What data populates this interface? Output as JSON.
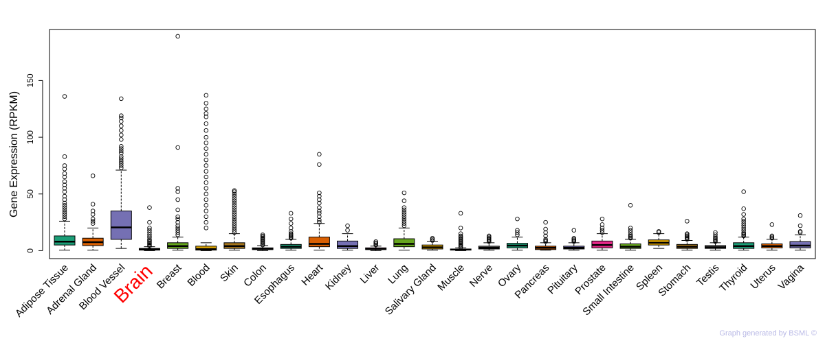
{
  "chart_data": {
    "type": "box",
    "ylabel": "Gene Expression (RPKM)",
    "ylim": [
      -7,
      195
    ],
    "yticks": [
      0,
      50,
      100,
      150
    ],
    "highlight_category": "Brain",
    "highlight_color": "#ff0000",
    "boxes": [
      {
        "label": "Adipose Tissue",
        "color": "#1b9e77",
        "q1": 5,
        "median": 8,
        "q3": 13,
        "whisker_low": 0.5,
        "whisker_high": 26,
        "outliers": [
          28,
          30,
          32,
          34,
          36,
          38,
          40,
          42,
          45,
          48,
          52,
          55,
          58,
          61,
          65,
          68,
          72,
          75,
          83,
          136
        ]
      },
      {
        "label": "Adrenal Gland",
        "color": "#d95f02",
        "q1": 4.5,
        "median": 7.5,
        "q3": 11,
        "whisker_low": 0.5,
        "whisker_high": 20,
        "outliers": [
          24,
          26,
          28,
          32,
          35,
          41,
          66
        ]
      },
      {
        "label": "Blood Vessel",
        "color": "#7570b3",
        "q1": 10,
        "median": 20.5,
        "q3": 35,
        "whisker_low": 2,
        "whisker_high": 71,
        "outliers": [
          73,
          75,
          77,
          79,
          81,
          83,
          86,
          88,
          90,
          92,
          98,
          102,
          106,
          110,
          114,
          117,
          119,
          134
        ]
      },
      {
        "label": "Brain",
        "color": "#e7298a",
        "q1": 0.5,
        "median": 1,
        "q3": 2,
        "whisker_low": 0,
        "whisker_high": 3.5,
        "outliers": [
          4,
          5,
          6,
          7,
          8,
          9,
          10,
          12,
          14,
          16,
          18,
          20,
          25,
          38
        ]
      },
      {
        "label": "Breast",
        "color": "#66a61e",
        "q1": 2,
        "median": 4,
        "q3": 7,
        "whisker_low": 0.5,
        "whisker_high": 12,
        "outliers": [
          14,
          16,
          18,
          20,
          22,
          25,
          28,
          30,
          36,
          45,
          52,
          55,
          91,
          189
        ]
      },
      {
        "label": "Blood",
        "color": "#e6ab02",
        "q1": 0.5,
        "median": 1.5,
        "q3": 4,
        "whisker_low": 0,
        "whisker_high": 7,
        "outliers": [
          20,
          25,
          30,
          35,
          40,
          45,
          50,
          55,
          60,
          65,
          70,
          75,
          80,
          85,
          90,
          95,
          100,
          106,
          112,
          118,
          121,
          125,
          130,
          137
        ]
      },
      {
        "label": "Skin",
        "color": "#a6761d",
        "q1": 2,
        "median": 4,
        "q3": 7,
        "whisker_low": 0.5,
        "whisker_high": 15,
        "outliers": [
          16,
          18,
          20,
          22,
          24,
          26,
          28,
          30,
          32,
          34,
          36,
          38,
          40,
          42,
          44,
          46,
          48,
          50,
          52,
          53
        ]
      },
      {
        "label": "Colon",
        "color": "#666666",
        "q1": 1,
        "median": 1.5,
        "q3": 2.5,
        "whisker_low": 0,
        "whisker_high": 4.5,
        "outliers": [
          5,
          6,
          7,
          8,
          9,
          10,
          11,
          12,
          13,
          14
        ]
      },
      {
        "label": "Esophagus",
        "color": "#1b9e77",
        "q1": 2,
        "median": 3.5,
        "q3": 5.5,
        "whisker_low": 0.5,
        "whisker_high": 10,
        "outliers": [
          11,
          12,
          13,
          14,
          15,
          17,
          20,
          24,
          28,
          33
        ]
      },
      {
        "label": "Heart",
        "color": "#d95f02",
        "q1": 3.5,
        "median": 6,
        "q3": 12,
        "whisker_low": 0.5,
        "whisker_high": 24,
        "outliers": [
          25,
          27,
          30,
          33,
          35,
          38,
          42,
          45,
          48,
          51,
          76,
          85
        ]
      },
      {
        "label": "Kidney",
        "color": "#7570b3",
        "q1": 2,
        "median": 4,
        "q3": 8.5,
        "whisker_low": 0.5,
        "whisker_high": 15,
        "outliers": [
          18,
          22
        ]
      },
      {
        "label": "Liver",
        "color": "#e7298a",
        "q1": 1,
        "median": 1.5,
        "q3": 2.5,
        "whisker_low": 0,
        "whisker_high": 4,
        "outliers": [
          5,
          6,
          7,
          8
        ]
      },
      {
        "label": "Lung",
        "color": "#66a61e",
        "q1": 3.5,
        "median": 6,
        "q3": 10.5,
        "whisker_low": 0.5,
        "whisker_high": 20,
        "outliers": [
          22,
          24,
          26,
          28,
          30,
          32,
          34,
          36,
          38,
          44,
          51
        ]
      },
      {
        "label": "Salivary Gland",
        "color": "#e6ab02",
        "q1": 1.5,
        "median": 3,
        "q3": 5,
        "whisker_low": 0.5,
        "whisker_high": 8,
        "outliers": [
          9,
          10,
          11
        ]
      },
      {
        "label": "Muscle",
        "color": "#a6761d",
        "q1": 0.5,
        "median": 1,
        "q3": 1.5,
        "whisker_low": 0,
        "whisker_high": 2.5,
        "outliers": [
          3,
          4,
          5,
          6,
          7,
          8,
          9,
          10,
          11,
          12,
          13,
          15,
          20,
          33
        ]
      },
      {
        "label": "Nerve",
        "color": "#666666",
        "q1": 1.5,
        "median": 2.5,
        "q3": 4,
        "whisker_low": 0.5,
        "whisker_high": 7,
        "outliers": [
          8,
          9,
          10,
          11,
          12,
          13
        ]
      },
      {
        "label": "Ovary",
        "color": "#1b9e77",
        "q1": 2.5,
        "median": 4.5,
        "q3": 6.5,
        "whisker_low": 0.5,
        "whisker_high": 12,
        "outliers": [
          14,
          16,
          18,
          28
        ]
      },
      {
        "label": "Pancreas",
        "color": "#d95f02",
        "q1": 1,
        "median": 2.5,
        "q3": 4,
        "whisker_low": 0.5,
        "whisker_high": 7,
        "outliers": [
          8,
          9,
          10,
          13,
          16,
          19,
          25
        ]
      },
      {
        "label": "Pituitary",
        "color": "#7570b3",
        "q1": 1.5,
        "median": 2.5,
        "q3": 4,
        "whisker_low": 0.5,
        "whisker_high": 7,
        "outliers": [
          8,
          9,
          10,
          11,
          18
        ]
      },
      {
        "label": "Prostate",
        "color": "#e7298a",
        "q1": 2.5,
        "median": 5,
        "q3": 8.5,
        "whisker_low": 0.5,
        "whisker_high": 15,
        "outliers": [
          16,
          18,
          20,
          23,
          28
        ]
      },
      {
        "label": "Small Intestine",
        "color": "#66a61e",
        "q1": 2,
        "median": 3.5,
        "q3": 6,
        "whisker_low": 0.5,
        "whisker_high": 10,
        "outliers": [
          11,
          12,
          13,
          14,
          16,
          18,
          20,
          40
        ]
      },
      {
        "label": "Spleen",
        "color": "#e6ab02",
        "q1": 5,
        "median": 7,
        "q3": 9.5,
        "whisker_low": 2,
        "whisker_high": 15,
        "outliers": [
          16,
          17
        ]
      },
      {
        "label": "Stomach",
        "color": "#a6761d",
        "q1": 2,
        "median": 3.5,
        "q3": 5.5,
        "whisker_low": 0.5,
        "whisker_high": 9,
        "outliers": [
          10,
          11,
          12,
          13,
          14,
          15,
          26
        ]
      },
      {
        "label": "Testis",
        "color": "#666666",
        "q1": 2,
        "median": 3,
        "q3": 4.5,
        "whisker_low": 0.5,
        "whisker_high": 7,
        "outliers": [
          8,
          9,
          10,
          11,
          12,
          14,
          16
        ]
      },
      {
        "label": "Thyroid",
        "color": "#1b9e77",
        "q1": 2,
        "median": 4,
        "q3": 7,
        "whisker_low": 0.5,
        "whisker_high": 12,
        "outliers": [
          13,
          14,
          15,
          16,
          18,
          20,
          22,
          24,
          26,
          28,
          32,
          37,
          52
        ]
      },
      {
        "label": "Uterus",
        "color": "#d95f02",
        "q1": 2.5,
        "median": 4,
        "q3": 6,
        "whisker_low": 0.5,
        "whisker_high": 10,
        "outliers": [
          11,
          12,
          13,
          23
        ]
      },
      {
        "label": "Vagina",
        "color": "#7570b3",
        "q1": 2.5,
        "median": 4.5,
        "q3": 8,
        "whisker_low": 0.5,
        "whisker_high": 14,
        "outliers": [
          16,
          17,
          22,
          31
        ]
      }
    ]
  },
  "watermark": "Graph generated by BSML ©"
}
